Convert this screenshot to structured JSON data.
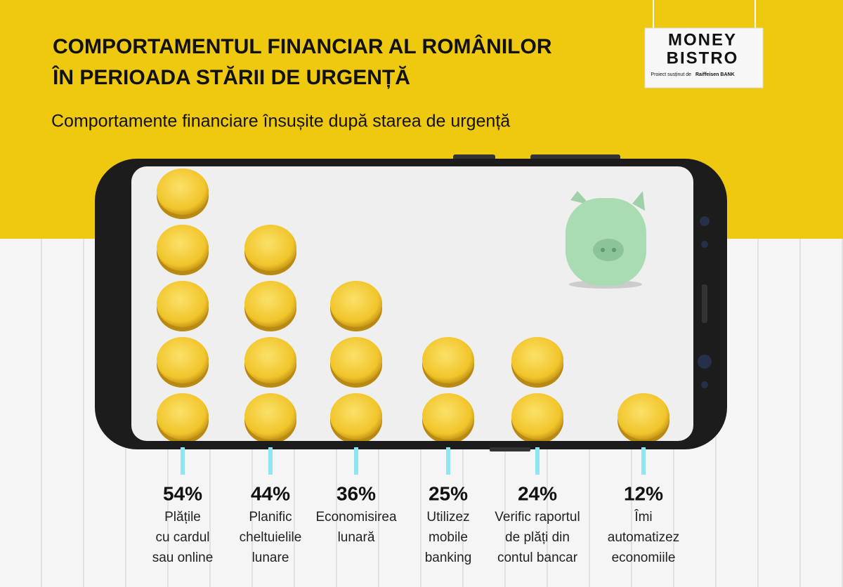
{
  "chart_data": {
    "type": "bar",
    "title": [
      "COMPORTAMENTUL FINANCIAR AL ROMÂNILOR",
      "ÎN PERIOADA STĂRII DE URGENȚĂ"
    ],
    "subtitle": "Comportamente financiare însușite după starea de urgență",
    "categories": [
      [
        "Plățile",
        "cu cardul",
        "sau online"
      ],
      [
        "Planific",
        "cheltuielile",
        "lunare"
      ],
      [
        "Economisirea",
        "lunară"
      ],
      [
        "Utilizez",
        "mobile",
        "banking"
      ],
      [
        "Verific raportul",
        "de plăți din",
        "contul bancar"
      ],
      [
        "Îmi",
        "automatizez",
        "economiile"
      ]
    ],
    "values": [
      54,
      44,
      36,
      25,
      24,
      12
    ],
    "value_labels": [
      "54%",
      "44%",
      "36%",
      "25%",
      "24%",
      "12%"
    ],
    "color": "#f5c92a"
  },
  "logo": {
    "line1": "MONEY",
    "line2": "BISTRO",
    "sponsor": "Proiect susținut de",
    "bank": "Raiffeisen BANK"
  }
}
